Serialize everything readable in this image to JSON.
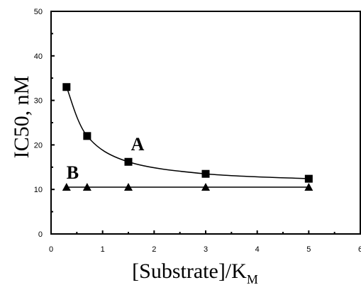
{
  "chart_data": {
    "type": "scatter",
    "title": "",
    "xlabel": "[Substrate]/K",
    "xlabel_subscript": "M",
    "ylabel": "IC50, nM",
    "xlim": [
      0,
      6
    ],
    "ylim": [
      0,
      50
    ],
    "x_ticks": [
      0,
      1,
      2,
      3,
      4,
      5,
      6
    ],
    "y_ticks": [
      0,
      10,
      20,
      30,
      40,
      50
    ],
    "grid": false,
    "series": [
      {
        "name": "A",
        "marker": "square",
        "x": [
          0.3,
          0.7,
          1.5,
          3.0,
          5.0
        ],
        "y": [
          33.0,
          22.0,
          16.2,
          13.5,
          12.4
        ],
        "fit": "curve"
      },
      {
        "name": "B",
        "marker": "triangle",
        "x": [
          0.3,
          0.7,
          1.5,
          3.0,
          5.0
        ],
        "y": [
          10.5,
          10.5,
          10.5,
          10.5,
          10.5
        ],
        "fit": "line"
      }
    ],
    "colors": {
      "marker": "#000000",
      "line": "#000000"
    }
  }
}
